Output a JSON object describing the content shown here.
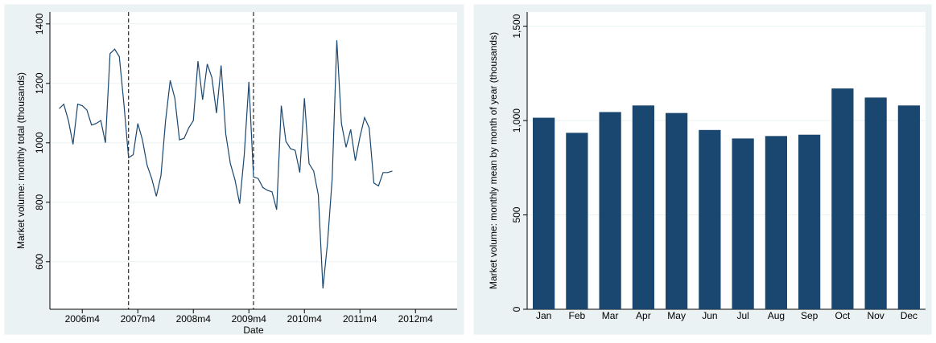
{
  "chart_data": [
    {
      "type": "line",
      "x_label": "Date",
      "y_label": "Market volume: monthly total (thousands)",
      "color": "#1a476f",
      "x": [
        550,
        551,
        552,
        553,
        554,
        555,
        556,
        557,
        558,
        559,
        560,
        561,
        562,
        563,
        564,
        565,
        566,
        567,
        568,
        569,
        570,
        571,
        572,
        573,
        574,
        575,
        576,
        577,
        578,
        579,
        580,
        581,
        582,
        583,
        584,
        585,
        586,
        587,
        588,
        589,
        590,
        591,
        592,
        593,
        594,
        595,
        596,
        597,
        598,
        599,
        600,
        601,
        602,
        603,
        604,
        605,
        606,
        607,
        608,
        609,
        610,
        611,
        612,
        613,
        614,
        615,
        616,
        617,
        618,
        619,
        620,
        621,
        622
      ],
      "values": [
        1115,
        1130,
        1075,
        995,
        1130,
        1125,
        1110,
        1060,
        1065,
        1075,
        1000,
        1300,
        1315,
        1290,
        1130,
        950,
        960,
        1065,
        1010,
        925,
        880,
        820,
        890,
        1075,
        1210,
        1150,
        1010,
        1015,
        1050,
        1075,
        1275,
        1145,
        1265,
        1220,
        1100,
        1260,
        1030,
        930,
        875,
        795,
        960,
        1205,
        885,
        880,
        850,
        840,
        835,
        775,
        1125,
        1005,
        980,
        975,
        900,
        1150,
        930,
        905,
        825,
        510,
        665,
        880,
        1345,
        1065,
        985,
        1045,
        940,
        1020,
        1085,
        1050,
        865,
        855,
        900,
        900,
        905
      ],
      "xlines": [
        565,
        592
      ],
      "xlim": [
        548,
        636
      ],
      "xticks": [
        {
          "value": 555,
          "label": "2006m4"
        },
        {
          "value": 567,
          "label": "2007m4"
        },
        {
          "value": 579,
          "label": "2008m4"
        },
        {
          "value": 591,
          "label": "2009m4"
        },
        {
          "value": 603,
          "label": "2010m4"
        },
        {
          "value": 615,
          "label": "2011m4"
        },
        {
          "value": 627,
          "label": "2012m4"
        }
      ],
      "ylim": [
        440,
        1440
      ],
      "yticks": [
        600,
        800,
        1000,
        1200,
        1400
      ],
      "grid": true
    },
    {
      "type": "bar",
      "y_label": "Market volume: monthly mean by month of year (thousands)",
      "color": "#1a476f",
      "categories": [
        "Jan",
        "Feb",
        "Mar",
        "Apr",
        "May",
        "Jun",
        "Jul",
        "Aug",
        "Sep",
        "Oct",
        "Nov",
        "Dec"
      ],
      "values": [
        1015,
        935,
        1045,
        1080,
        1040,
        950,
        905,
        918,
        925,
        1170,
        1122,
        1080
      ],
      "ylim": [
        0,
        1575
      ],
      "yticks": [
        0,
        500,
        {
          "value": 1000,
          "label": "1,000"
        },
        {
          "value": 1500,
          "label": "1,500"
        }
      ],
      "grid": true
    }
  ]
}
